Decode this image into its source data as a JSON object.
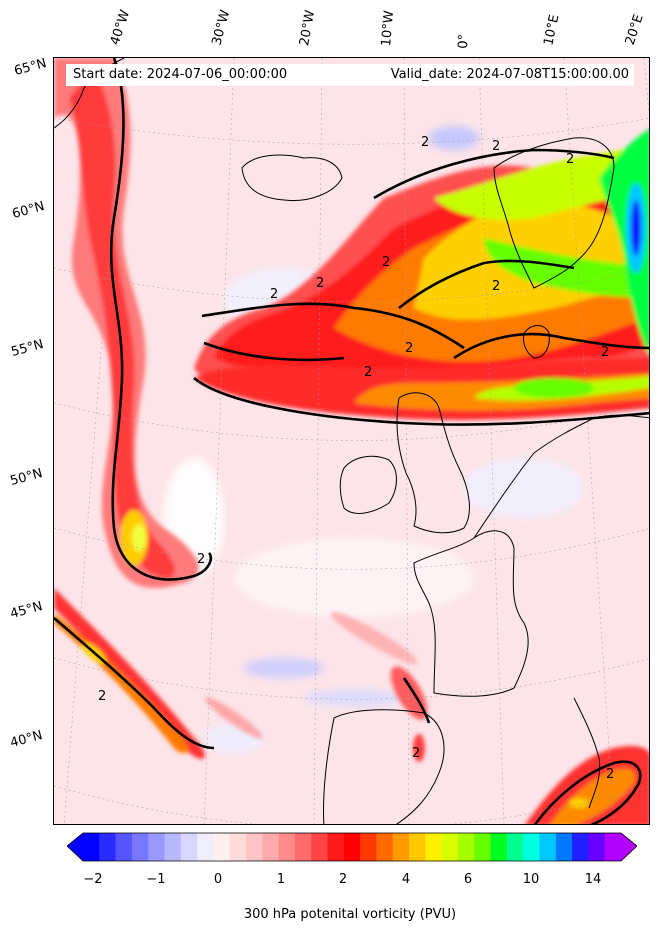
{
  "info": {
    "start_date": "Start date: 2024-07-06_00:00:00",
    "valid_date": "Valid_date: 2024-07-08T15:00:00.00"
  },
  "map": {
    "longitude_labels": [
      "40°W",
      "30°W",
      "20°W",
      "10°W",
      "0°",
      "10°E",
      "20°E"
    ],
    "latitude_labels": [
      "65°N",
      "60°N",
      "55°N",
      "50°N",
      "45°N",
      "40°N"
    ],
    "contour_label": "2",
    "field": "300 hPa potential vorticity",
    "gridlines": true
  },
  "colorbar": {
    "label": "300 hPa potenital vorticity (PVU)",
    "ticks": [
      "−2",
      "−1",
      "0",
      "1",
      "2",
      "4",
      "6",
      "10",
      "14"
    ],
    "extend": "both",
    "colors": [
      "#0000ff",
      "#2a2aff",
      "#5555ff",
      "#7777ff",
      "#9999ff",
      "#b8b8ff",
      "#d6d6ff",
      "#eeeeff",
      "#fff0f0",
      "#ffdcdc",
      "#ffc4c4",
      "#ffaaaa",
      "#ff8a8a",
      "#ff6a6a",
      "#ff4444",
      "#ff1a1a",
      "#ff0000",
      "#ff3a00",
      "#ff6a00",
      "#ff9a00",
      "#ffc800",
      "#fff000",
      "#d8ff00",
      "#a8ff00",
      "#66ff00",
      "#00ff20",
      "#00ff90",
      "#00ffe0",
      "#00c8ff",
      "#0078ff",
      "#2020ff",
      "#6a00ff",
      "#b000ff"
    ],
    "extend_low_color": "#0000ff",
    "extend_high_color": "#b400ff"
  }
}
